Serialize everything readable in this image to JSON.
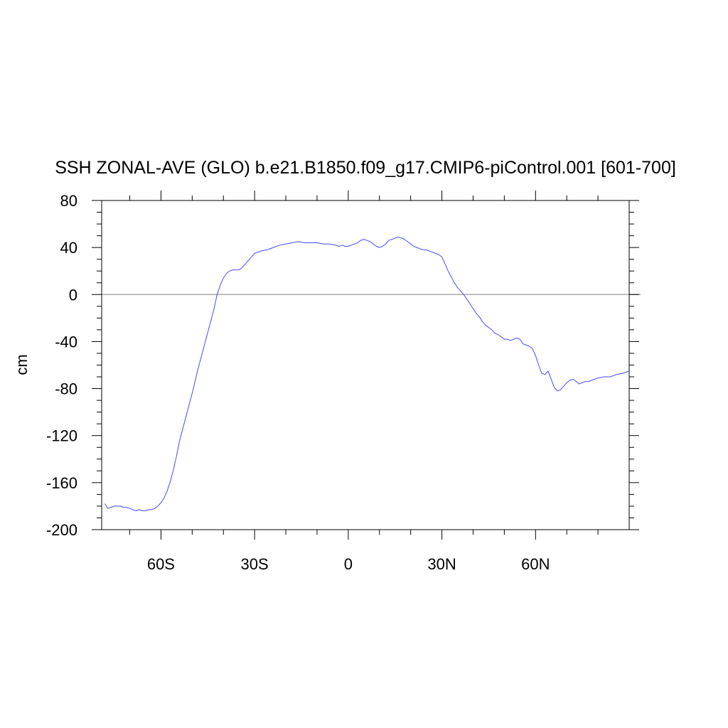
{
  "chart_data": {
    "type": "line",
    "title": "SSH ZONAL-AVE (GLO) b.e21.B1850.f09_g17.CMIP6-piControl.001 [601-700]",
    "xlabel": "",
    "ylabel": "cm",
    "xlim": [
      -79,
      90
    ],
    "ylim": [
      -200,
      80
    ],
    "x_ticks": [
      -60,
      -30,
      0,
      30,
      60
    ],
    "x_tick_labels": [
      "60S",
      "30S",
      "0",
      "30N",
      "60N"
    ],
    "y_ticks": [
      -200,
      -160,
      -120,
      -80,
      -40,
      0,
      40,
      80
    ],
    "y_tick_labels": [
      "-200",
      "-160",
      "-120",
      "-80",
      "-40",
      "0",
      "40",
      "80"
    ],
    "reference_line": 0,
    "grid": false,
    "colors": {
      "line": "#4a4aff",
      "reference": "#999999",
      "axes": "#000000"
    },
    "series": [
      {
        "x": [
          -78,
          -77.5,
          -77,
          -76,
          -75,
          -74,
          -73,
          -72,
          -71,
          -70,
          -69,
          -68,
          -67,
          -66,
          -65,
          -64,
          -63,
          -62,
          -61,
          -60,
          -59,
          -58,
          -57,
          -56,
          -55,
          -54,
          -53,
          -52,
          -51,
          -50,
          -49,
          -48,
          -47,
          -46,
          -45,
          -44,
          -43,
          -42,
          -41,
          -40,
          -39,
          -38,
          -37,
          -36,
          -35,
          -34,
          -33,
          -32,
          -31,
          -30,
          -28,
          -26,
          -24,
          -22,
          -20,
          -18,
          -16,
          -14,
          -12,
          -10,
          -8,
          -6,
          -4,
          -3,
          -2,
          -1,
          0,
          1,
          2,
          3,
          4,
          5,
          6,
          7,
          8,
          9,
          10,
          11,
          12,
          13,
          14,
          15,
          16,
          17,
          18,
          19,
          20,
          21,
          22,
          23,
          24,
          25,
          26,
          27,
          28,
          29,
          30,
          31,
          32,
          33,
          34,
          35,
          36,
          37,
          38,
          39,
          40,
          41,
          42,
          43,
          44,
          45,
          46,
          47,
          48,
          49,
          50,
          51,
          52,
          53,
          54,
          55,
          56,
          57,
          58,
          59,
          60,
          61,
          62,
          63,
          64,
          65,
          66,
          67,
          68,
          69,
          70,
          71,
          72,
          73,
          74,
          75,
          76,
          77,
          78,
          80,
          82,
          84,
          86,
          88,
          89,
          90
        ],
        "values": [
          -178,
          -180,
          -182,
          -181,
          -180,
          -180,
          -180,
          -181,
          -181,
          -182,
          -183,
          -184,
          -183,
          -184,
          -184,
          -183,
          -183,
          -182,
          -180,
          -177,
          -173,
          -167,
          -159,
          -149,
          -137,
          -124,
          -114,
          -104,
          -94,
          -84,
          -73,
          -62,
          -52,
          -42,
          -32,
          -22,
          -12,
          0,
          8,
          14,
          18,
          20,
          21,
          21,
          21,
          23,
          26,
          29,
          32,
          35,
          37,
          38,
          40,
          42,
          43,
          44,
          45,
          44,
          44,
          44,
          43,
          43,
          42,
          41,
          42,
          41,
          41,
          42,
          43,
          44,
          46,
          47,
          46,
          45,
          43,
          41,
          40,
          41,
          43,
          46,
          47,
          48,
          49,
          48,
          47,
          45,
          43,
          41,
          40,
          39,
          38,
          38,
          37,
          36,
          35,
          34,
          32,
          26,
          20,
          15,
          10,
          6,
          3,
          0,
          -4,
          -8,
          -12,
          -16,
          -19,
          -23,
          -26,
          -28,
          -30,
          -33,
          -34,
          -36,
          -38,
          -38,
          -39,
          -38,
          -37,
          -38,
          -42,
          -43,
          -44,
          -46,
          -52,
          -60,
          -67,
          -68,
          -65,
          -72,
          -79,
          -82,
          -81,
          -78,
          -75,
          -73,
          -72,
          -74,
          -76,
          -75,
          -74,
          -74,
          -73,
          -71,
          -70,
          -70,
          -68,
          -67,
          -66,
          -65
        ]
      }
    ]
  }
}
